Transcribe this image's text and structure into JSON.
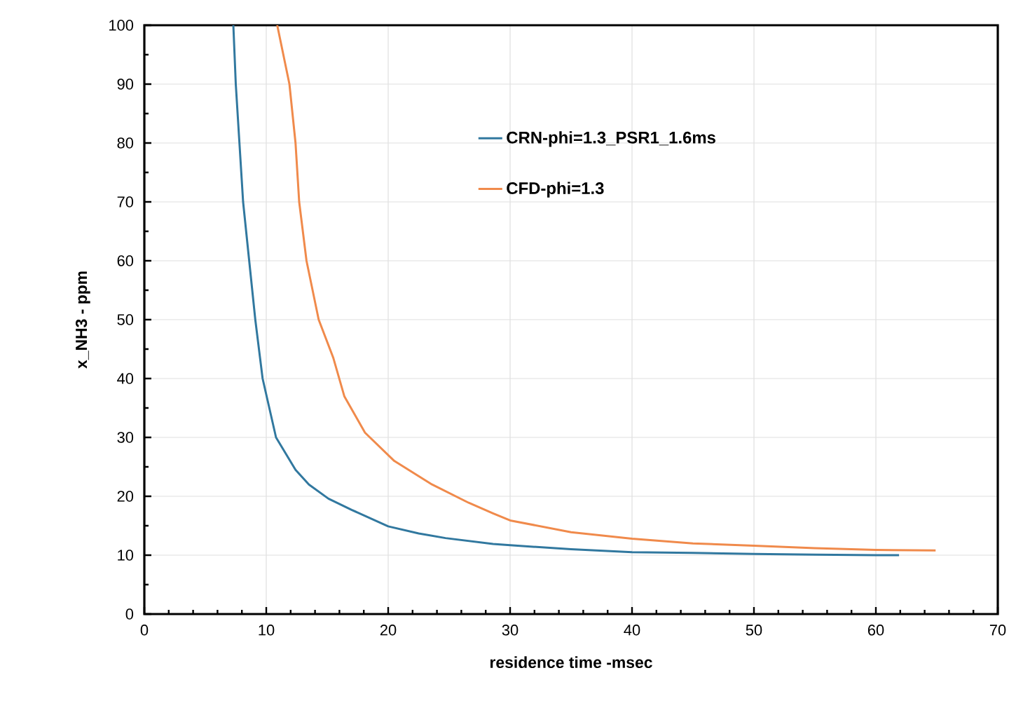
{
  "chart_data": {
    "type": "line",
    "xlabel": "residence time -msec",
    "ylabel": "x_NH3 - ppm",
    "xlim": [
      0,
      70
    ],
    "ylim": [
      0,
      100
    ],
    "xticks": [
      0,
      10,
      20,
      30,
      40,
      50,
      60,
      70
    ],
    "yticks": [
      0,
      10,
      20,
      30,
      40,
      50,
      60,
      70,
      80,
      90,
      100
    ],
    "grid": true,
    "legend": "top right",
    "marker": "none",
    "line_style": "solid",
    "series": [
      {
        "name": "CRN-phi=1.3_PSR1_1.6ms",
        "color": "#31789f",
        "x": [
          7.3,
          7.5,
          7.8,
          8.1,
          8.6,
          9.1,
          9.7,
          10.8,
          12.4,
          13.5,
          15.1,
          17.0,
          20.0,
          22.5,
          24.7,
          28.6,
          30,
          35,
          40,
          45,
          50,
          55,
          60,
          61.9
        ],
        "values": [
          100,
          90,
          80,
          70,
          60,
          50,
          40,
          30,
          24.5,
          22,
          19.6,
          17.7,
          14.9,
          13.7,
          12.9,
          11.9,
          11.7,
          11.0,
          10.5,
          10.4,
          10.2,
          10.1,
          10.0,
          10.0
        ]
      },
      {
        "name": "CFD-phi=1.3",
        "color": "#f08a4b",
        "x": [
          10.9,
          11.9,
          12.4,
          12.7,
          13.3,
          14.3,
          15.5,
          16.4,
          18.1,
          20.5,
          23.6,
          26.6,
          28.6,
          30,
          35,
          40,
          45,
          50,
          55,
          60,
          64.9
        ],
        "values": [
          100,
          90,
          80,
          70,
          60,
          50,
          43.5,
          37,
          30.8,
          26,
          22,
          18.9,
          17.1,
          15.9,
          13.9,
          12.8,
          12.0,
          11.6,
          11.2,
          10.9,
          10.8
        ]
      }
    ]
  }
}
